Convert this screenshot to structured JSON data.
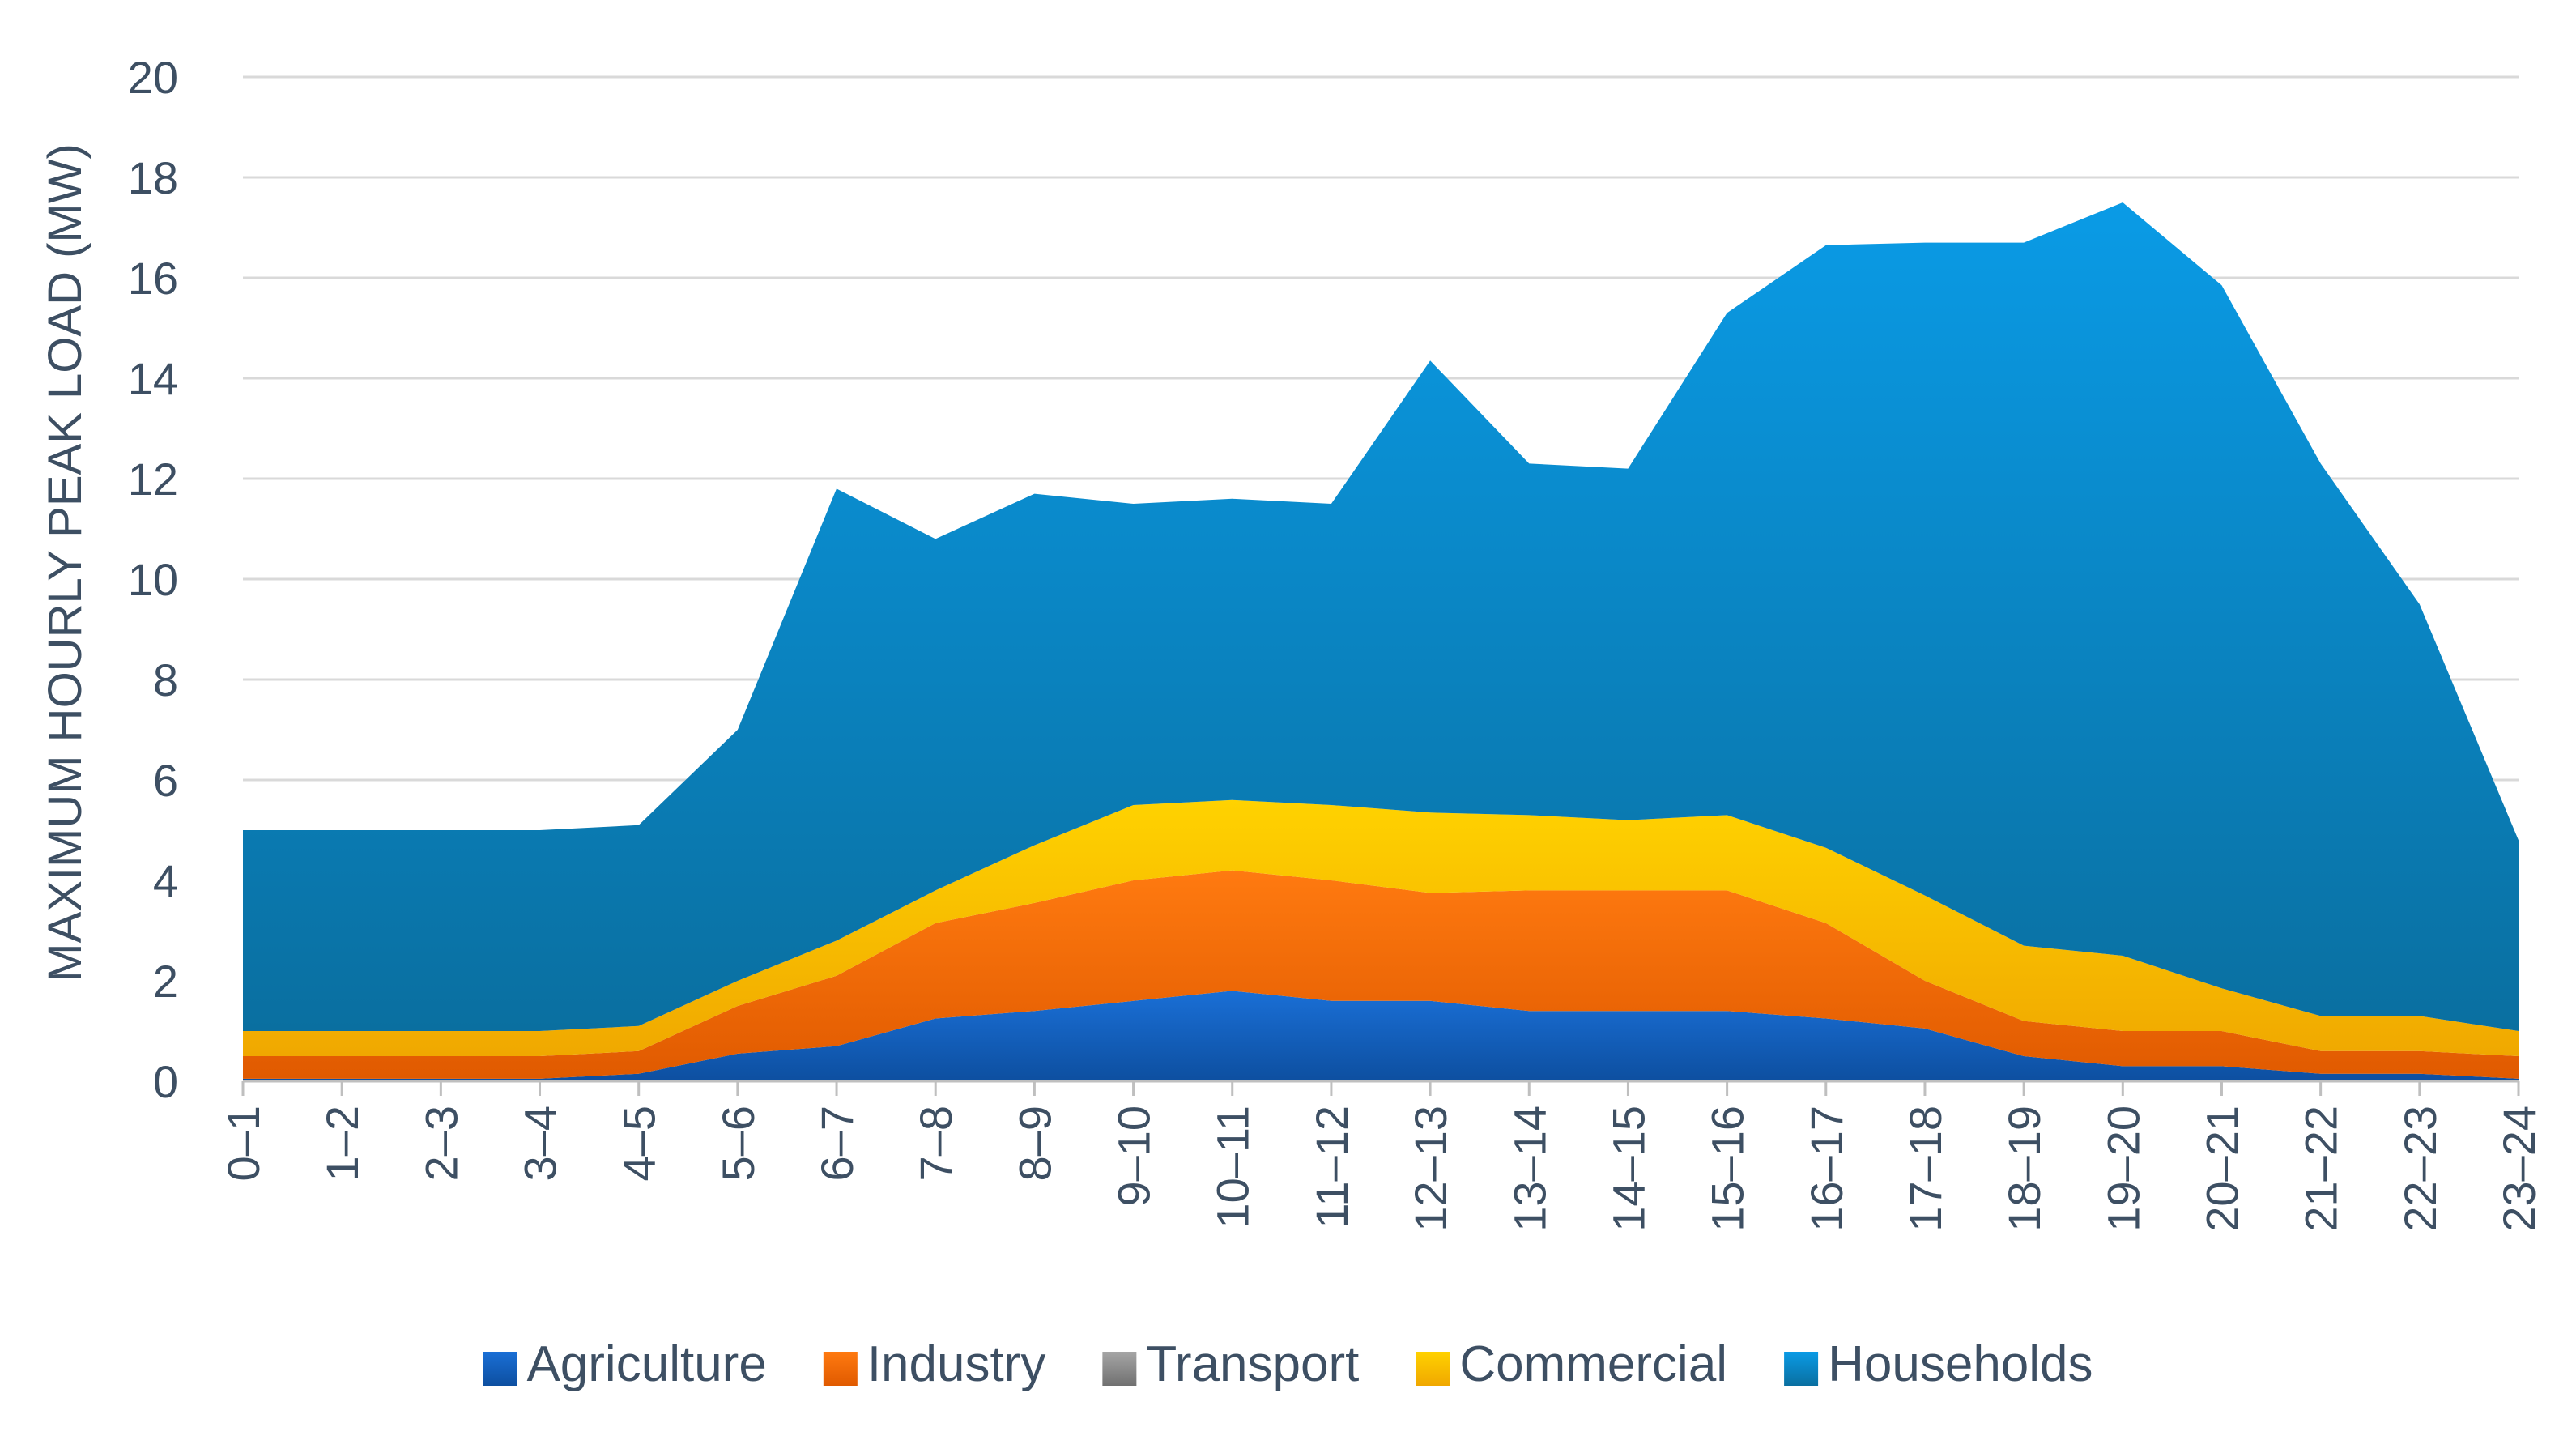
{
  "chart_data": {
    "type": "area",
    "stacked": true,
    "title": "",
    "xlabel": "",
    "ylabel": "MAXIMUM HOURLY PEAK LOAD (MW)",
    "ylim": [
      0,
      20
    ],
    "yticks": [
      0,
      2,
      4,
      6,
      8,
      10,
      12,
      14,
      16,
      18,
      20
    ],
    "grid": true,
    "legend_position": "bottom",
    "categories": [
      "0–1",
      "1–2",
      "2–3",
      "3–4",
      "4–5",
      "5–6",
      "6–7",
      "7–8",
      "8–9",
      "9–10",
      "10–11",
      "11–12",
      "12–13",
      "13–14",
      "14–15",
      "15–16",
      "16–17",
      "17–18",
      "18–19",
      "19–20",
      "20–21",
      "21–22",
      "22–23",
      "23–24"
    ],
    "series": [
      {
        "name": "Agriculture",
        "color": "#1565c0",
        "color_light": "#1a6fd6",
        "color_dark": "#0d4fa0",
        "values": [
          0.05,
          0.05,
          0.05,
          0.05,
          0.15,
          0.55,
          0.7,
          1.25,
          1.4,
          1.6,
          1.8,
          1.6,
          1.6,
          1.4,
          1.4,
          1.4,
          1.25,
          1.05,
          0.5,
          0.3,
          0.3,
          0.15,
          0.15,
          0.05
        ]
      },
      {
        "name": "Industry",
        "color": "#f26b00",
        "color_light": "#ff7a10",
        "color_dark": "#e05a00",
        "values": [
          0.45,
          0.45,
          0.45,
          0.45,
          0.45,
          0.95,
          1.4,
          1.9,
          2.15,
          2.4,
          2.4,
          2.4,
          2.15,
          2.4,
          2.4,
          2.4,
          1.9,
          0.95,
          0.7,
          0.7,
          0.7,
          0.45,
          0.45,
          0.45
        ]
      },
      {
        "name": "Transport",
        "color": "#8c8c8c",
        "color_light": "#a6a6a6",
        "color_dark": "#707070",
        "values": [
          0,
          0,
          0,
          0,
          0,
          0,
          0,
          0,
          0,
          0,
          0,
          0,
          0,
          0,
          0,
          0,
          0,
          0,
          0,
          0,
          0,
          0,
          0,
          0
        ]
      },
      {
        "name": "Commercial",
        "color": "#ffc000",
        "color_light": "#ffd200",
        "color_dark": "#f0a800",
        "values": [
          0.5,
          0.5,
          0.5,
          0.5,
          0.5,
          0.5,
          0.7,
          0.65,
          1.15,
          1.5,
          1.4,
          1.5,
          1.6,
          1.5,
          1.4,
          1.5,
          1.5,
          1.7,
          1.5,
          1.5,
          0.85,
          0.7,
          0.7,
          0.5
        ]
      },
      {
        "name": "Households",
        "color": "#0a8fd8",
        "color_light": "#0a9be6",
        "color_dark": "#0a6fa0",
        "values": [
          4.0,
          4.0,
          4.0,
          4.0,
          4.0,
          5.0,
          9.0,
          7.0,
          7.0,
          6.0,
          6.0,
          6.0,
          9.0,
          7.0,
          7.0,
          10.0,
          12.0,
          13.0,
          14.0,
          15.0,
          14.0,
          11.0,
          8.2,
          3.8
        ]
      }
    ]
  }
}
